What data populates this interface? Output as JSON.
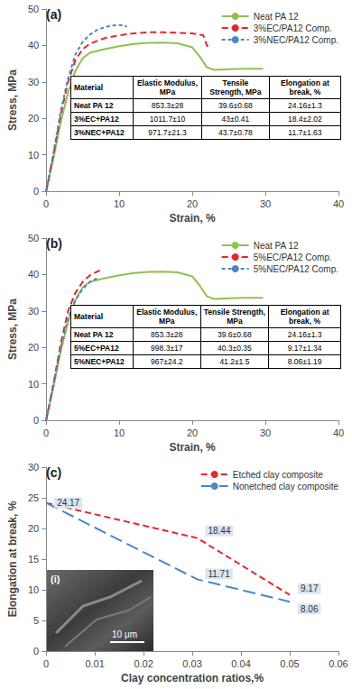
{
  "chart_data": [
    {
      "type": "line",
      "panel": "(a)",
      "xlabel": "Strain, %",
      "ylabel": "Stress, MPa",
      "xlim": [
        0,
        40
      ],
      "xticks": [
        0,
        10,
        20,
        30,
        40
      ],
      "ylim": [
        0,
        50
      ],
      "yticks": [
        0,
        10,
        20,
        30,
        40,
        50
      ],
      "grid": false,
      "legend": "upper right",
      "series": [
        {
          "name": "Neat PA 12",
          "color": "#92c050",
          "line_style": "solid",
          "x": [
            0,
            1,
            2,
            3,
            4,
            5,
            6,
            8,
            10,
            12,
            14,
            16,
            18,
            20,
            21,
            22,
            23,
            25,
            27,
            29.7
          ],
          "values": [
            0,
            9,
            19,
            27,
            33,
            36.5,
            38,
            39,
            39.8,
            40.4,
            40.7,
            40.8,
            40.6,
            39.5,
            37,
            34,
            33.3,
            33.5,
            33.6,
            33.6
          ]
        },
        {
          "name": "3%EC/PA12 Comp.",
          "color": "#e8262a",
          "line_style": "dashed",
          "x": [
            0,
            1,
            2,
            3,
            4,
            5,
            6,
            8,
            10,
            12,
            14,
            16,
            18,
            20,
            21.5,
            22,
            22.2
          ],
          "values": [
            0,
            10,
            21,
            30,
            36,
            39,
            40.5,
            42,
            42.8,
            43.3,
            43.6,
            43.6,
            43.5,
            43.3,
            42.8,
            40,
            39.5
          ]
        },
        {
          "name": "3%NEC/PA12 Comp.",
          "color": "#4a86c8",
          "line_style": "dotted",
          "x": [
            0,
            1,
            2,
            3,
            4,
            5,
            6,
            7,
            8,
            9,
            10,
            10.8,
            11
          ],
          "values": [
            0,
            10.5,
            22,
            31,
            37.5,
            41,
            43,
            44.3,
            45,
            45.5,
            45.6,
            45.5,
            45
          ]
        }
      ],
      "table": {
        "columns": [
          "Material",
          "Elastic Modulus, MPa",
          "Tensile Strength, MPa",
          "Elongation at break, %"
        ],
        "rows": [
          [
            "Neat PA 12",
            "853.3±28",
            "39.6±0.68",
            "24.16±1.3"
          ],
          [
            "3%EC+PA12",
            "1011.7±10",
            "43±0.41",
            "18.4±2.02"
          ],
          [
            "3%NEC+PA12",
            "971.7±21.3",
            "43.7±0.78",
            "11.7±1.63"
          ]
        ]
      }
    },
    {
      "type": "line",
      "panel": "(b)",
      "xlabel": "Strain, %",
      "ylabel": "Stress, MPa",
      "xlim": [
        0,
        40
      ],
      "xticks": [
        0,
        10,
        20,
        30,
        40
      ],
      "ylim": [
        0,
        50
      ],
      "yticks": [
        0,
        10,
        20,
        30,
        40,
        50
      ],
      "grid": false,
      "legend": "upper right",
      "series": [
        {
          "name": "Neat PA 12",
          "color": "#92c050",
          "line_style": "solid",
          "x": [
            0,
            1,
            2,
            3,
            4,
            5,
            6,
            8,
            10,
            12,
            14,
            16,
            18,
            20,
            21,
            22,
            23,
            25,
            27,
            29.7
          ],
          "values": [
            0,
            9,
            19,
            27,
            33,
            36.5,
            38,
            39,
            39.8,
            40.4,
            40.7,
            40.8,
            40.6,
            39.5,
            37,
            34,
            33.3,
            33.5,
            33.6,
            33.6
          ]
        },
        {
          "name": "5%EC/PA12 Comp.",
          "color": "#e8262a",
          "line_style": "dashed",
          "x": [
            0,
            1,
            2,
            3,
            4,
            5,
            6,
            7,
            7.5
          ],
          "values": [
            0,
            10,
            21,
            30,
            35,
            38,
            39.8,
            40.8,
            41.2
          ]
        },
        {
          "name": "5%NEC/PA12 Comp.",
          "color": "#4a86c8",
          "line_style": "dotted",
          "x": [
            0,
            1,
            2,
            3,
            4,
            5,
            6,
            6.8,
            7.2
          ],
          "values": [
            0,
            10,
            20,
            28,
            33,
            36,
            38,
            38.8,
            39
          ]
        }
      ],
      "table": {
        "columns": [
          "Material",
          "Elastic Modulus, MPa",
          "Tensile Strength, MPa",
          "Elongation at break, %"
        ],
        "rows": [
          [
            "Neat PA 12",
            "853.3±28",
            "39.6±0.68",
            "24.16±1.3"
          ],
          [
            "5%EC+PA12",
            "998.3±17",
            "40.3±0.35",
            "9.17±1.34"
          ],
          [
            "5%NEC+PA12",
            "967±24.2",
            "41.2±1.5",
            "8.06±1.19"
          ]
        ]
      }
    },
    {
      "type": "line",
      "panel": "(c)",
      "xlabel": "Clay concentration ratios,%",
      "ylabel": "Elongation at break, %",
      "xlim": [
        0,
        0.06
      ],
      "xticks": [
        0,
        0.01,
        0.02,
        0.03,
        0.04,
        0.05,
        0.06
      ],
      "ylim": [
        0,
        30
      ],
      "yticks": [
        0,
        5,
        10,
        15,
        20,
        25,
        30
      ],
      "grid": false,
      "legend": "upper right",
      "data_labels": true,
      "series": [
        {
          "name": "Etched clay composite",
          "color": "#e8262a",
          "line_style": "dashed",
          "x": [
            0,
            0.031,
            0.05
          ],
          "values": [
            24.17,
            18.44,
            9.17
          ]
        },
        {
          "name": "Nonetched clay composite",
          "color": "#4a86c8",
          "line_style": "longdash",
          "x": [
            0,
            0.031,
            0.05
          ],
          "values": [
            24.17,
            11.71,
            8.06
          ],
          "value_labels": [
            null,
            "11.71",
            "8.06"
          ]
        }
      ],
      "inset": {
        "label": "(i)",
        "scale_bar": "10 μm"
      }
    }
  ]
}
